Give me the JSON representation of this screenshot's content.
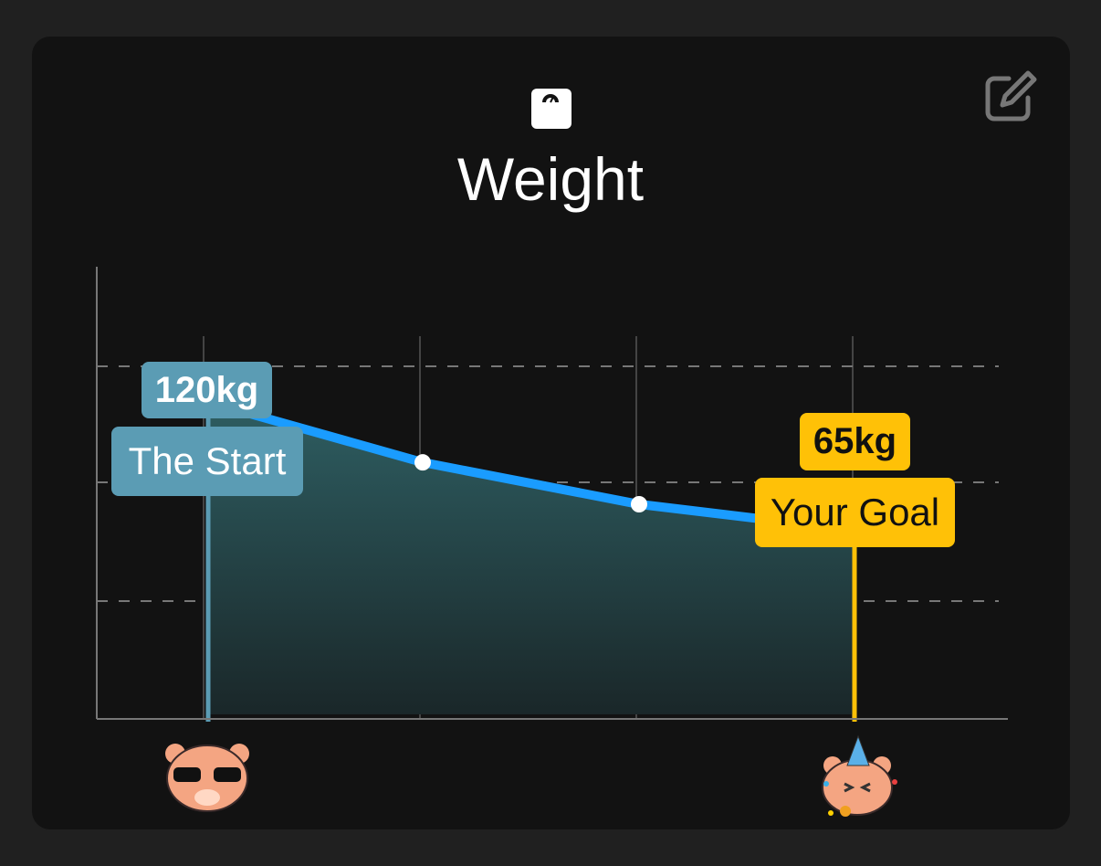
{
  "card": {
    "title": "Weight",
    "title_icon": "weight-scale-icon",
    "edit_icon": "edit-pencil-square-icon"
  },
  "chart_data": {
    "type": "area",
    "x": [
      1,
      2,
      3,
      4
    ],
    "values": [
      120,
      94,
      76,
      65
    ],
    "unit": "kg",
    "grid": true,
    "start": {
      "value_label": "120kg",
      "label": "The Start",
      "color": "#5b9cb4",
      "icon": "cool-bear-sunglasses-icon"
    },
    "goal": {
      "value_label": "65kg",
      "label": "Your Goal",
      "color": "#ffc107",
      "icon": "party-bear-icon"
    },
    "line_color": "#1a9cff"
  }
}
